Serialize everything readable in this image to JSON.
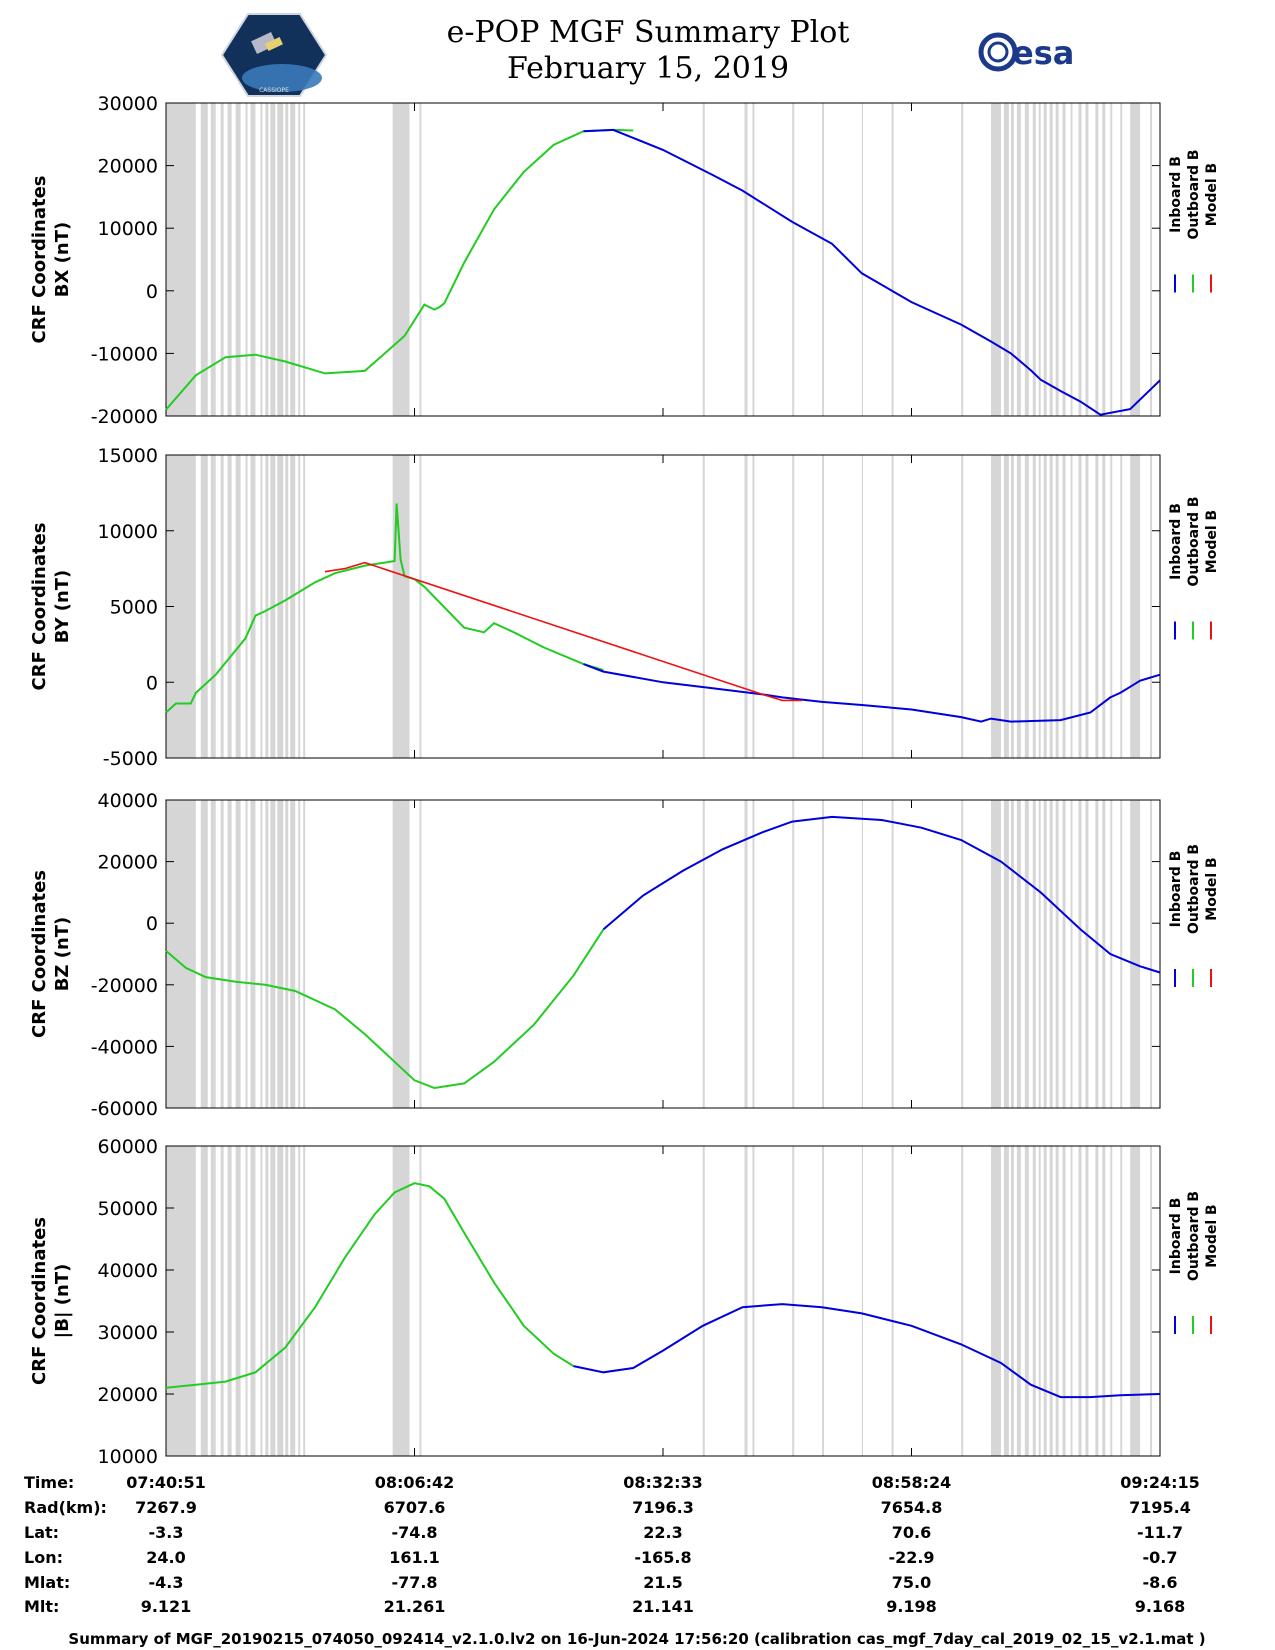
{
  "header": {
    "title": "e-POP MGF Summary Plot",
    "date": "February 15, 2019",
    "right_logo": "esa",
    "left_logo": "CASSIOPE",
    "logo_colors": {
      "esa": "#1b3a8a",
      "badge_bg": "#12315a"
    }
  },
  "colors": {
    "inboard": "#0000dd",
    "outboard": "#22cc22",
    "model": "#ee1111",
    "gap_band": "#d6d6d6"
  },
  "chart_data": [
    {
      "type": "line",
      "panel": "bx",
      "ylabel_1": "CRF Coordinates",
      "ylabel_2": "BX (nT)",
      "ylim": [
        -20000,
        30000
      ],
      "yticks": [
        -20000,
        -10000,
        0,
        10000,
        20000,
        30000
      ],
      "legend": [
        "Inboard B",
        "Outboard B",
        "Model B"
      ],
      "legend_placement": "right",
      "series": [
        {
          "name": "Outboard B",
          "color_key": "outboard",
          "x": [
            0,
            0.03,
            0.06,
            0.09,
            0.12,
            0.16,
            0.2,
            0.24,
            0.26,
            0.27,
            0.275,
            0.28,
            0.3,
            0.33,
            0.36,
            0.39,
            0.42,
            0.45,
            0.47
          ],
          "y": [
            -19000,
            -13500,
            -10600,
            -10200,
            -11300,
            -13200,
            -12800,
            -7200,
            -2200,
            -3000,
            -2600,
            -2000,
            4500,
            13000,
            19000,
            23300,
            25500,
            25700,
            25600
          ]
        },
        {
          "name": "Inboard B",
          "color_key": "inboard",
          "x": [
            0.42,
            0.45,
            0.5,
            0.55,
            0.58,
            0.63,
            0.67,
            0.7,
            0.75,
            0.8,
            0.83,
            0.85,
            0.87,
            0.88,
            0.9,
            0.92,
            0.94,
            0.97,
            1.0
          ],
          "y": [
            25500,
            25700,
            22500,
            18500,
            16000,
            11000,
            7500,
            2800,
            -1800,
            -5400,
            -8100,
            -10000,
            -12700,
            -14200,
            -16000,
            -17700,
            -19800,
            -18900,
            -14300
          ]
        },
        {
          "name": "Model B",
          "color_key": "model",
          "x": [],
          "y": []
        }
      ]
    },
    {
      "type": "line",
      "panel": "by",
      "ylabel_1": "CRF Coordinates",
      "ylabel_2": "BY (nT)",
      "ylim": [
        -5000,
        15000
      ],
      "yticks": [
        -5000,
        0,
        5000,
        10000,
        15000
      ],
      "legend": [
        "Inboard B",
        "Outboard B",
        "Model B"
      ],
      "legend_placement": "right",
      "series": [
        {
          "name": "Outboard B",
          "color_key": "outboard",
          "x": [
            0,
            0.01,
            0.025,
            0.03,
            0.05,
            0.08,
            0.09,
            0.1,
            0.12,
            0.15,
            0.17,
            0.2,
            0.22,
            0.23,
            0.232,
            0.236,
            0.24,
            0.25,
            0.26,
            0.3,
            0.32,
            0.33,
            0.35,
            0.38,
            0.42,
            0.44
          ],
          "y": [
            -2000,
            -1400,
            -1400,
            -700,
            500,
            2900,
            4400,
            4700,
            5400,
            6600,
            7200,
            7700,
            7900,
            8000,
            11800,
            8100,
            7000,
            6800,
            6300,
            3600,
            3300,
            3900,
            3300,
            2300,
            1200,
            800
          ]
        },
        {
          "name": "Inboard B",
          "color_key": "inboard",
          "x": [
            0.42,
            0.44,
            0.5,
            0.55,
            0.6,
            0.62,
            0.66,
            0.7,
            0.75,
            0.8,
            0.82,
            0.83,
            0.85,
            0.9,
            0.93,
            0.95,
            0.96,
            0.97,
            0.98,
            1.0
          ],
          "y": [
            1200,
            700,
            0,
            -400,
            -800,
            -1000,
            -1300,
            -1500,
            -1800,
            -2300,
            -2600,
            -2400,
            -2600,
            -2500,
            -2000,
            -1000,
            -700,
            -300,
            100,
            500
          ]
        },
        {
          "name": "Model B",
          "color_key": "model",
          "x": [
            0.16,
            0.18,
            0.2,
            0.6,
            0.62,
            0.64
          ],
          "y": [
            7300,
            7500,
            7900,
            -800,
            -1200,
            -1200
          ]
        }
      ]
    },
    {
      "type": "line",
      "panel": "bz",
      "ylabel_1": "CRF Coordinates",
      "ylabel_2": "BZ (nT)",
      "ylim": [
        -60000,
        40000
      ],
      "yticks": [
        -60000,
        -40000,
        -20000,
        0,
        20000,
        40000
      ],
      "legend": [
        "Inboard B",
        "Outboard B",
        "Model B"
      ],
      "legend_placement": "right",
      "series": [
        {
          "name": "Outboard B",
          "color_key": "outboard",
          "x": [
            0,
            0.02,
            0.04,
            0.07,
            0.1,
            0.13,
            0.17,
            0.2,
            0.23,
            0.25,
            0.27,
            0.3,
            0.33,
            0.37,
            0.41,
            0.44
          ],
          "y": [
            -9000,
            -14500,
            -17500,
            -19000,
            -20000,
            -22000,
            -28000,
            -36000,
            -45000,
            -51000,
            -53500,
            -52000,
            -45000,
            -33000,
            -17000,
            -2000
          ]
        },
        {
          "name": "Inboard B",
          "color_key": "inboard",
          "x": [
            0.44,
            0.48,
            0.52,
            0.56,
            0.6,
            0.63,
            0.67,
            0.72,
            0.76,
            0.8,
            0.84,
            0.88,
            0.92,
            0.95,
            0.98,
            1.0
          ],
          "y": [
            -2000,
            9000,
            17000,
            24000,
            29500,
            33000,
            34500,
            33500,
            31000,
            27000,
            20000,
            10000,
            -2000,
            -10000,
            -14000,
            -16000
          ]
        },
        {
          "name": "Model B",
          "color_key": "model",
          "x": [],
          "y": []
        }
      ]
    },
    {
      "type": "line",
      "panel": "bmag",
      "ylabel_1": "CRF Coordinates",
      "ylabel_2": "|B| (nT)",
      "ylim": [
        10000,
        60000
      ],
      "yticks": [
        10000,
        20000,
        30000,
        40000,
        50000,
        60000
      ],
      "legend": [
        "Inboard B",
        "Outboard B",
        "Model B"
      ],
      "legend_placement": "right",
      "series": [
        {
          "name": "Outboard B",
          "color_key": "outboard",
          "x": [
            0,
            0.03,
            0.06,
            0.09,
            0.12,
            0.15,
            0.18,
            0.21,
            0.23,
            0.25,
            0.265,
            0.28,
            0.3,
            0.33,
            0.36,
            0.39,
            0.41
          ],
          "y": [
            21000,
            21500,
            22000,
            23500,
            27500,
            34000,
            42000,
            49000,
            52500,
            54000,
            53500,
            51500,
            46000,
            38000,
            31000,
            26500,
            24500
          ]
        },
        {
          "name": "Inboard B",
          "color_key": "inboard",
          "x": [
            0.41,
            0.44,
            0.47,
            0.5,
            0.54,
            0.58,
            0.62,
            0.66,
            0.7,
            0.75,
            0.8,
            0.84,
            0.87,
            0.9,
            0.93,
            0.96,
            1.0
          ],
          "y": [
            24500,
            23500,
            24200,
            27000,
            31000,
            34000,
            34500,
            34000,
            33000,
            31000,
            28000,
            25000,
            21500,
            19500,
            19500,
            19800,
            20000
          ]
        },
        {
          "name": "Model B",
          "color_key": "model",
          "x": [],
          "y": []
        }
      ]
    }
  ],
  "gap_bands": [
    [
      0.0,
      0.03
    ],
    [
      0.035,
      0.042
    ],
    [
      0.045,
      0.05
    ],
    [
      0.055,
      0.058
    ],
    [
      0.062,
      0.066
    ],
    [
      0.07,
      0.075
    ],
    [
      0.08,
      0.082
    ],
    [
      0.085,
      0.09
    ],
    [
      0.095,
      0.097
    ],
    [
      0.1,
      0.103
    ],
    [
      0.105,
      0.11
    ],
    [
      0.112,
      0.118
    ],
    [
      0.12,
      0.123
    ],
    [
      0.125,
      0.13
    ],
    [
      0.133,
      0.135
    ],
    [
      0.138,
      0.14
    ],
    [
      0.228,
      0.245
    ],
    [
      0.255,
      0.257
    ],
    [
      0.54,
      0.542
    ],
    [
      0.582,
      0.585
    ],
    [
      0.59,
      0.592
    ],
    [
      0.63,
      0.632
    ],
    [
      0.66,
      0.662
    ],
    [
      0.7,
      0.701
    ],
    [
      0.73,
      0.732
    ],
    [
      0.8,
      0.802
    ],
    [
      0.83,
      0.84
    ],
    [
      0.843,
      0.848
    ],
    [
      0.85,
      0.853
    ],
    [
      0.856,
      0.86
    ],
    [
      0.864,
      0.868
    ],
    [
      0.872,
      0.875
    ],
    [
      0.878,
      0.88
    ],
    [
      0.883,
      0.886
    ],
    [
      0.889,
      0.892
    ],
    [
      0.895,
      0.898
    ],
    [
      0.902,
      0.905
    ],
    [
      0.91,
      0.912
    ],
    [
      0.918,
      0.921
    ],
    [
      0.925,
      0.928
    ],
    [
      0.935,
      0.938
    ],
    [
      0.942,
      0.945
    ],
    [
      0.95,
      0.952
    ],
    [
      0.96,
      0.962
    ],
    [
      0.97,
      0.98
    ],
    [
      0.99,
      0.992
    ]
  ],
  "ephemeris": {
    "labels": [
      "Time:",
      "Rad(km):",
      "Lat:",
      "Lon:",
      "Mlat:",
      "Mlt:"
    ],
    "columns": [
      {
        "x": 0.0,
        "values": [
          "07:40:51",
          "7267.9",
          "-3.3",
          "24.0",
          "-4.3",
          "9.121"
        ]
      },
      {
        "x": 0.25,
        "values": [
          "08:06:42",
          "6707.6",
          "-74.8",
          "161.1",
          "-77.8",
          "21.261"
        ]
      },
      {
        "x": 0.5,
        "values": [
          "08:32:33",
          "7196.3",
          "22.3",
          "-165.8",
          "21.5",
          "21.141"
        ]
      },
      {
        "x": 0.75,
        "values": [
          "08:58:24",
          "7654.8",
          "70.6",
          "-22.9",
          "75.0",
          "9.198"
        ]
      },
      {
        "x": 1.0,
        "values": [
          "09:24:15",
          "7195.4",
          "-11.7",
          "-0.7",
          "-8.6",
          "9.168"
        ]
      }
    ]
  },
  "footer": "Summary of MGF_20190215_074050_092414_v2.1.0.lv2 on 16-Jun-2024 17:56:20 (calibration cas_mgf_7day_cal_2019_02_15_v2.1.mat )"
}
